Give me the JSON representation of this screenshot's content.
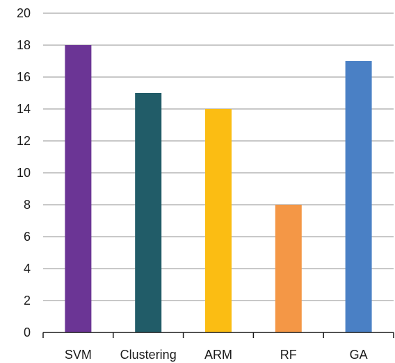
{
  "chart_data": {
    "type": "bar",
    "title": "",
    "xlabel": "",
    "ylabel": "",
    "categories": [
      "SVM",
      "Clustering",
      "ARM",
      "RF",
      "GA"
    ],
    "values": [
      18,
      15,
      14,
      8,
      17
    ],
    "colors": [
      "#6b3595",
      "#215c68",
      "#fbbd13",
      "#f49746",
      "#4a80c5"
    ],
    "ylim": [
      0,
      20
    ],
    "yticks": [
      "0",
      "2",
      "4",
      "6",
      "8",
      "10",
      "12",
      "14",
      "16",
      "18",
      "20"
    ],
    "grid": true,
    "legend": "none"
  }
}
